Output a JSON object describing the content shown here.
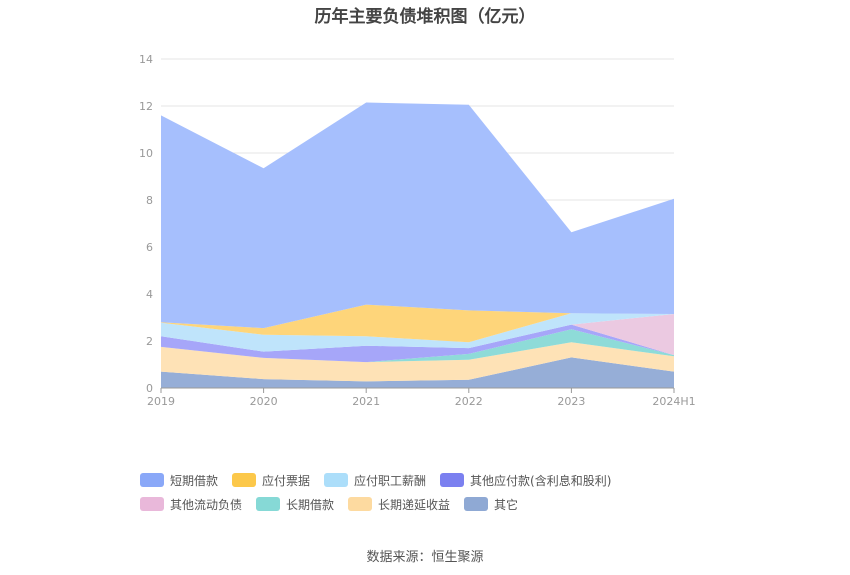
{
  "chart_data": {
    "type": "area",
    "stacked": true,
    "title": "历年主要负债堆积图（亿元）",
    "categories": [
      "2019",
      "2020",
      "2021",
      "2022",
      "2023",
      "2024H1"
    ],
    "ylim": [
      0,
      14
    ],
    "yticks": [
      "0",
      "2",
      "4",
      "6",
      "8",
      "10",
      "12",
      "14"
    ],
    "grid": true,
    "legend_position": "bottom",
    "series": [
      {
        "name": "其它",
        "color": "#96aed7",
        "values": [
          0.7,
          0.38,
          0.28,
          0.35,
          1.3,
          0.7
        ]
      },
      {
        "name": "长期递延收益",
        "color": "#fee2b6",
        "values": [
          1.05,
          0.9,
          0.82,
          0.85,
          0.65,
          0.65
        ]
      },
      {
        "name": "长期借款",
        "color": "#8edbd8",
        "values": [
          0.0,
          0.0,
          0.0,
          0.25,
          0.55,
          0.05
        ]
      },
      {
        "name": "其他应付款(含利息和股利)",
        "color": "#a6a6f9",
        "values": [
          0.45,
          0.27,
          0.7,
          0.25,
          0.2,
          0.0
        ]
      },
      {
        "name": "其他流动负债",
        "color": "#ebc9e1",
        "values": [
          0.0,
          0.0,
          0.0,
          0.0,
          0.0,
          1.75
        ]
      },
      {
        "name": "应付职工薪酬",
        "color": "#bfe4fb",
        "values": [
          0.58,
          0.72,
          0.4,
          0.25,
          0.48,
          0.0
        ]
      },
      {
        "name": "应付票据",
        "color": "#fed57a",
        "values": [
          0.02,
          0.28,
          1.35,
          1.35,
          0.0,
          0.0
        ]
      },
      {
        "name": "短期借款",
        "color": "#a6bffd",
        "values": [
          8.8,
          6.8,
          8.6,
          8.75,
          3.45,
          4.9
        ]
      }
    ],
    "legend": [
      {
        "name": "短期借款",
        "color": "#8aa8f8"
      },
      {
        "name": "应付票据",
        "color": "#fcc84a"
      },
      {
        "name": "应付职工薪酬",
        "color": "#acdefa"
      },
      {
        "name": "其他应付款(含利息和股利)",
        "color": "#7b80f0"
      },
      {
        "name": "其他流动负债",
        "color": "#e9b8da"
      },
      {
        "name": "长期借款",
        "color": "#86d9d6"
      },
      {
        "name": "长期递延收益",
        "color": "#fddaa0"
      },
      {
        "name": "其它",
        "color": "#8fa9d4"
      }
    ]
  },
  "source": "数据来源：恒生聚源",
  "colors": {
    "grid": "#e6e6e6",
    "axis": "#999999",
    "tick_label": "#999999"
  }
}
